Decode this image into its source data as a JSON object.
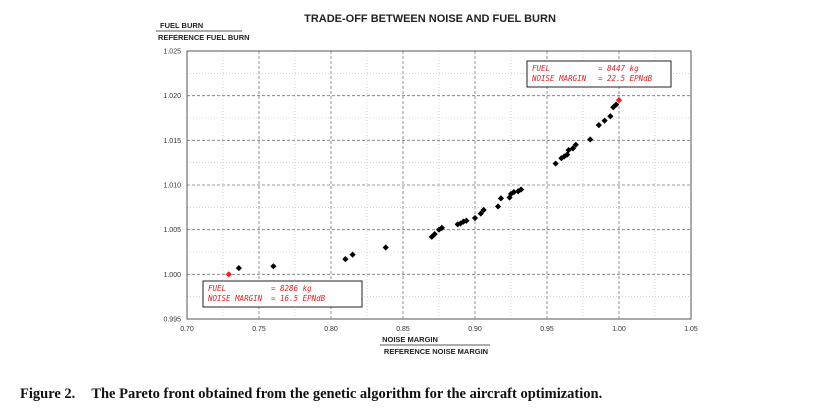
{
  "chart_data": {
    "type": "scatter",
    "title": "TRADE-OFF BETWEEN NOISE AND FUEL BURN",
    "ylabel_numerator": "FUEL BURN",
    "ylabel_denominator": "REFERENCE FUEL BURN",
    "xlabel_numerator": "NOISE MARGIN",
    "xlabel_denominator": "REFERENCE NOISE MARGIN",
    "xlim": [
      0.7,
      1.05
    ],
    "ylim": [
      0.995,
      1.025
    ],
    "xticks": [
      "0.70",
      "0.75",
      "0.80",
      "0.85",
      "0.90",
      "0.95",
      "1.00",
      "1.05"
    ],
    "yticks": [
      "0.995",
      "1.000",
      "1.005",
      "1.010",
      "1.015",
      "1.020",
      "1.025"
    ],
    "grid": "dashed major and minor",
    "series": [
      {
        "color": "#000000",
        "points": [
          [
            0.736,
            1.0007
          ],
          [
            0.76,
            1.0009
          ],
          [
            0.81,
            1.0017
          ],
          [
            0.815,
            1.0022
          ],
          [
            0.838,
            1.003
          ],
          [
            0.87,
            1.0042
          ],
          [
            0.872,
            1.0045
          ],
          [
            0.875,
            1.005
          ],
          [
            0.877,
            1.0052
          ],
          [
            0.888,
            1.0056
          ],
          [
            0.89,
            1.0057
          ],
          [
            0.892,
            1.0059
          ],
          [
            0.894,
            1.006
          ],
          [
            0.9,
            1.0063
          ],
          [
            0.904,
            1.0068
          ],
          [
            0.906,
            1.0072
          ],
          [
            0.916,
            1.0076
          ],
          [
            0.918,
            1.0085
          ],
          [
            0.924,
            1.0086
          ],
          [
            0.925,
            1.009
          ],
          [
            0.927,
            1.0092
          ],
          [
            0.93,
            1.0093
          ],
          [
            0.932,
            1.0095
          ],
          [
            0.956,
            1.0124
          ],
          [
            0.96,
            1.013
          ],
          [
            0.962,
            1.0132
          ],
          [
            0.964,
            1.0134
          ],
          [
            0.965,
            1.0139
          ],
          [
            0.968,
            1.0141
          ],
          [
            0.97,
            1.0145
          ],
          [
            0.98,
            1.0151
          ],
          [
            0.986,
            1.0167
          ],
          [
            0.99,
            1.0172
          ],
          [
            0.994,
            1.0177
          ],
          [
            0.996,
            1.0187
          ],
          [
            0.998,
            1.019
          ]
        ]
      },
      {
        "color": "#ff1a1a",
        "points": [
          [
            0.729,
            1.0
          ],
          [
            1.0,
            1.0195
          ]
        ]
      }
    ],
    "annotations": [
      {
        "line1_key": "FUEL",
        "line1_value": "= 8286 kg",
        "line2_key": "NOISE MARGIN",
        "line2_value": "= 16.5 EPNdB",
        "anchor": "bottom-left"
      },
      {
        "line1_key": "FUEL",
        "line1_value": "= 8447 kg",
        "line2_key": "NOISE MARGIN",
        "line2_value": "= 22.5 EPNdB",
        "anchor": "top-right"
      }
    ]
  },
  "caption": {
    "label": "Figure 2.",
    "text": "The Pareto front obtained from the genetic algorithm for the aircraft optimization."
  }
}
